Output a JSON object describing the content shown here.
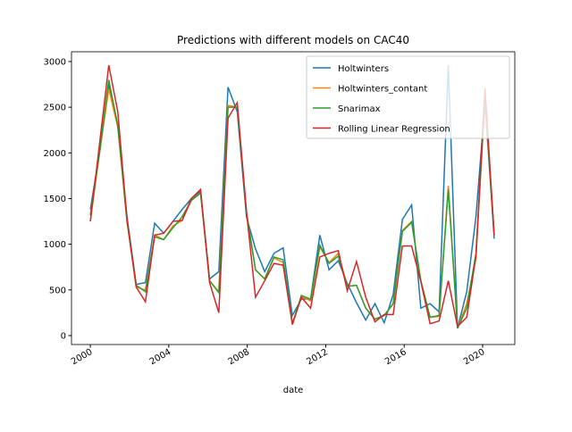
{
  "chart_data": {
    "type": "line",
    "title": "Predictions with different models on CAC40",
    "xlabel": "date",
    "x": [
      2000.0,
      2000.47,
      2000.94,
      2001.4,
      2001.87,
      2002.34,
      2002.81,
      2003.28,
      2003.74,
      2004.21,
      2004.68,
      2005.15,
      2005.62,
      2006.08,
      2006.55,
      2007.02,
      2007.49,
      2007.96,
      2008.42,
      2008.89,
      2009.36,
      2009.83,
      2010.3,
      2010.76,
      2011.23,
      2011.7,
      2012.17,
      2012.64,
      2013.1,
      2013.57,
      2014.04,
      2014.51,
      2014.98,
      2015.44,
      2015.91,
      2016.38,
      2016.85,
      2017.32,
      2017.78,
      2018.25,
      2018.72,
      2019.19,
      2019.66,
      2020.12,
      2020.59
    ],
    "series": [
      {
        "name": "Holtwinters",
        "color": "#1f77b4",
        "values": [
          1380,
          2000,
          2750,
          2300,
          1300,
          560,
          580,
          1230,
          1120,
          1250,
          1380,
          1500,
          1580,
          620,
          700,
          2720,
          2450,
          1300,
          950,
          700,
          900,
          960,
          220,
          400,
          400,
          1100,
          720,
          820,
          570,
          360,
          170,
          350,
          140,
          450,
          1270,
          1430,
          300,
          350,
          260,
          2960,
          80,
          480,
          1300,
          2550,
          1060
        ]
      },
      {
        "name": "Holtwinters_contant",
        "color": "#ff7f0e",
        "values": [
          1250,
          2000,
          2700,
          2280,
          1250,
          530,
          500,
          1100,
          1050,
          1200,
          1260,
          1480,
          1560,
          600,
          480,
          2520,
          2500,
          1350,
          720,
          620,
          850,
          800,
          130,
          430,
          380,
          970,
          800,
          900,
          540,
          550,
          300,
          180,
          220,
          350,
          1150,
          1250,
          600,
          200,
          210,
          1640,
          80,
          350,
          850,
          2600,
          1100
        ]
      },
      {
        "name": "Snarimax",
        "color": "#2ca02c",
        "values": [
          1320,
          2000,
          2800,
          2300,
          1250,
          550,
          480,
          1080,
          1050,
          1180,
          1300,
          1480,
          1560,
          600,
          470,
          2500,
          2500,
          1350,
          720,
          620,
          860,
          830,
          130,
          440,
          400,
          990,
          790,
          870,
          540,
          550,
          300,
          180,
          220,
          350,
          1140,
          1240,
          600,
          200,
          220,
          1600,
          80,
          300,
          900,
          2600,
          1100
        ]
      },
      {
        "name": "Rolling Linear Regression",
        "color": "#d62728",
        "values": [
          1250,
          2100,
          2960,
          2450,
          1270,
          530,
          370,
          1100,
          1120,
          1250,
          1260,
          1500,
          1600,
          580,
          250,
          2380,
          2550,
          1360,
          420,
          600,
          790,
          770,
          120,
          420,
          300,
          860,
          900,
          930,
          490,
          810,
          420,
          150,
          230,
          230,
          980,
          980,
          590,
          130,
          160,
          600,
          100,
          200,
          870,
          2710,
          1100
        ]
      }
    ],
    "xlim": [
      1999.04,
      2021.64
    ],
    "xticks": [
      2000,
      2004,
      2008,
      2012,
      2016,
      2020
    ],
    "ylim": [
      -98,
      3107
    ],
    "yticks": [
      0,
      500,
      1000,
      1500,
      2000,
      2500,
      3000
    ],
    "legend": "upper right"
  }
}
